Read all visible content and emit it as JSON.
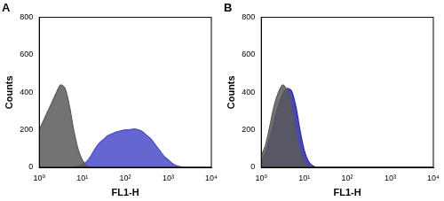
{
  "chart_data": [
    {
      "type": "area",
      "title": "A",
      "x_label": "FL1-H",
      "y_label": "Counts",
      "log": "x",
      "grid": false,
      "xlim": [
        1,
        10000
      ],
      "xticks": [
        {
          "value": 1,
          "label": "10⁰"
        },
        {
          "value": 10,
          "label": "10¹"
        },
        {
          "value": 100,
          "label": "10²"
        },
        {
          "value": 1000,
          "label": "10³"
        },
        {
          "value": 10000,
          "label": "10⁴"
        }
      ],
      "ylim": [
        0,
        800
      ],
      "yticks": [
        0,
        200,
        400,
        600,
        800
      ],
      "x": [
        1,
        1.26,
        1.58,
        2,
        2.51,
        3.16,
        3.98,
        5.01,
        6.31,
        7.94,
        10,
        12.6,
        15.8,
        20,
        25.1,
        31.6,
        39.8,
        50.1,
        63.1,
        79.4,
        100,
        126,
        158,
        200,
        251,
        316,
        398,
        501,
        631,
        794,
        1000,
        1259,
        1585,
        1995,
        2512,
        3162,
        3981,
        5012,
        6310,
        7943,
        10000
      ],
      "series": [
        {
          "color": "#5a5a5a",
          "values": [
            200,
            250,
            300,
            350,
            400,
            440,
            420,
            330,
            200,
            100,
            40,
            10,
            0,
            0,
            0,
            0,
            0,
            0,
            0,
            0,
            0,
            0,
            0,
            0,
            0,
            0,
            0,
            0,
            0,
            0,
            0,
            0,
            0,
            0,
            0,
            0,
            0,
            0,
            0,
            0,
            0
          ]
        },
        {
          "color": "#4b4bc8",
          "values": [
            0,
            0,
            0,
            0,
            0,
            0,
            0,
            0,
            2,
            5,
            15,
            30,
            60,
            100,
            130,
            150,
            170,
            180,
            190,
            195,
            200,
            200,
            205,
            200,
            190,
            170,
            150,
            120,
            90,
            60,
            40,
            20,
            8,
            3,
            0,
            0,
            0,
            0,
            0,
            0,
            0
          ]
        }
      ]
    },
    {
      "type": "area",
      "title": "B",
      "x_label": "FL1-H",
      "y_label": "Counts",
      "log": "x",
      "grid": false,
      "xlim": [
        1,
        10000
      ],
      "xticks": [
        {
          "value": 1,
          "label": "10⁰"
        },
        {
          "value": 10,
          "label": "10¹"
        },
        {
          "value": 100,
          "label": "10²"
        },
        {
          "value": 1000,
          "label": "10³"
        },
        {
          "value": 10000,
          "label": "10⁴"
        }
      ],
      "ylim": [
        0,
        800
      ],
      "yticks": [
        0,
        200,
        400,
        600,
        800
      ],
      "x": [
        1,
        1.26,
        1.58,
        2,
        2.51,
        3.16,
        3.98,
        5.01,
        6.31,
        7.94,
        10,
        12.6,
        15.8,
        20,
        25.1,
        31.6,
        39.8,
        50.1,
        63.1,
        79.4,
        100,
        126,
        158,
        200,
        251,
        316,
        398,
        501,
        631,
        794,
        1000,
        1259,
        1585,
        1995,
        2512,
        3162,
        3981,
        5012,
        6310,
        7943,
        10000
      ],
      "series": [
        {
          "color": "#5a5a5a",
          "values": [
            60,
            120,
            220,
            330,
            400,
            440,
            410,
            320,
            180,
            80,
            25,
            5,
            0,
            0,
            0,
            0,
            0,
            0,
            0,
            0,
            0,
            0,
            0,
            0,
            0,
            0,
            0,
            0,
            0,
            0,
            0,
            0,
            0,
            0,
            0,
            0,
            0,
            0,
            0,
            0,
            0
          ]
        },
        {
          "color": "#2a2a9e",
          "values": [
            30,
            80,
            160,
            250,
            330,
            390,
            420,
            410,
            330,
            200,
            90,
            30,
            8,
            0,
            0,
            0,
            0,
            0,
            0,
            0,
            0,
            0,
            0,
            0,
            0,
            0,
            0,
            0,
            0,
            0,
            0,
            0,
            0,
            0,
            0,
            0,
            0,
            0,
            0,
            0,
            0
          ]
        }
      ]
    }
  ]
}
